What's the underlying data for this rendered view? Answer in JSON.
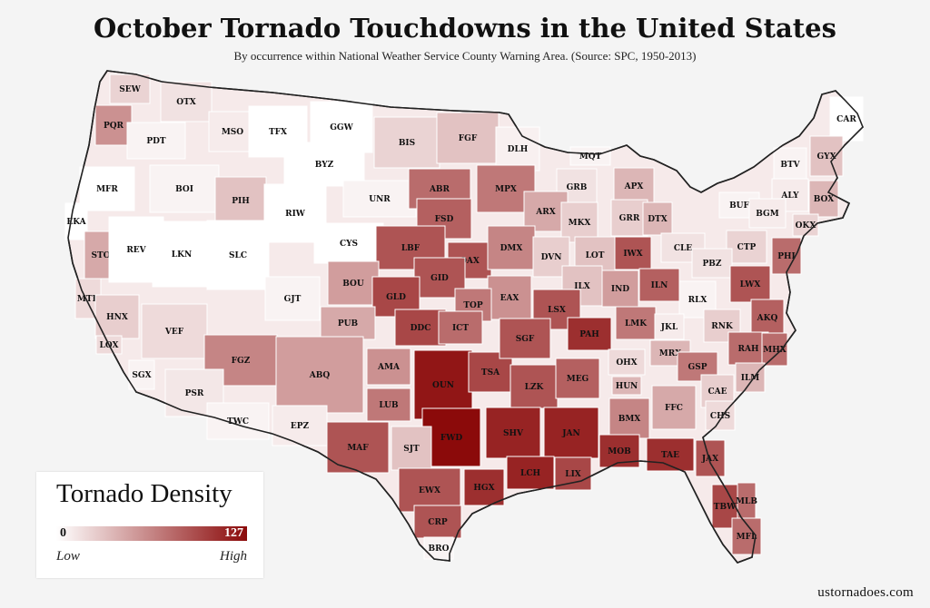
{
  "title": "October Tornado Touchdowns in the United States",
  "subtitle": "By occurrence within National Weather Service County Warning Area. (Source: SPC, 1950-2013)",
  "legend": {
    "title": "Tornado Density",
    "min": "0",
    "max": "127",
    "low": "Low",
    "high": "High",
    "color_low": "#ffffff",
    "color_high": "#8b0a0a"
  },
  "credit": "ustornadoes.com",
  "regions": [
    {
      "id": "SEW",
      "density": 0.18
    },
    {
      "id": "OTX",
      "density": 0.12
    },
    {
      "id": "PQR",
      "density": 0.45
    },
    {
      "id": "PDT",
      "density": 0.05
    },
    {
      "id": "MSO",
      "density": 0.08
    },
    {
      "id": "TFX",
      "density": 0.0
    },
    {
      "id": "GGW",
      "density": 0.0
    },
    {
      "id": "BIS",
      "density": 0.18
    },
    {
      "id": "FGF",
      "density": 0.25
    },
    {
      "id": "DLH",
      "density": 0.06
    },
    {
      "id": "MQT",
      "density": 0.05
    },
    {
      "id": "CAR",
      "density": 0.0
    },
    {
      "id": "MFR",
      "density": 0.0
    },
    {
      "id": "BOI",
      "density": 0.05
    },
    {
      "id": "BYZ",
      "density": 0.0
    },
    {
      "id": "UNR",
      "density": 0.05
    },
    {
      "id": "ABR",
      "density": 0.6
    },
    {
      "id": "MPX",
      "density": 0.55
    },
    {
      "id": "GRB",
      "density": 0.12
    },
    {
      "id": "APX",
      "density": 0.3
    },
    {
      "id": "BTV",
      "density": 0.05
    },
    {
      "id": "GYX",
      "density": 0.25
    },
    {
      "id": "EKA",
      "density": 0.0
    },
    {
      "id": "PIH",
      "density": 0.25
    },
    {
      "id": "RIW",
      "density": 0.0
    },
    {
      "id": "CYS",
      "density": 0.0
    },
    {
      "id": "FSD",
      "density": 0.65
    },
    {
      "id": "ARX",
      "density": 0.35
    },
    {
      "id": "MKX",
      "density": 0.2
    },
    {
      "id": "GRR",
      "density": 0.2
    },
    {
      "id": "DTX",
      "density": 0.3
    },
    {
      "id": "ALY",
      "density": 0.08
    },
    {
      "id": "BOX",
      "density": 0.3
    },
    {
      "id": "BUF",
      "density": 0.05
    },
    {
      "id": "BGM",
      "density": 0.08
    },
    {
      "id": "OKX",
      "density": 0.18
    },
    {
      "id": "STO",
      "density": 0.35
    },
    {
      "id": "REV",
      "density": 0.0
    },
    {
      "id": "LKN",
      "density": 0.0
    },
    {
      "id": "SLC",
      "density": 0.0
    },
    {
      "id": "LBF",
      "density": 0.7
    },
    {
      "id": "OAX",
      "density": 0.7
    },
    {
      "id": "DMX",
      "density": 0.5
    },
    {
      "id": "DVN",
      "density": 0.2
    },
    {
      "id": "LOT",
      "density": 0.25
    },
    {
      "id": "IWX",
      "density": 0.7
    },
    {
      "id": "CLE",
      "density": 0.12
    },
    {
      "id": "CTP",
      "density": 0.18
    },
    {
      "id": "PHI",
      "density": 0.6
    },
    {
      "id": "MTR",
      "density": 0.15
    },
    {
      "id": "GJT",
      "density": 0.05
    },
    {
      "id": "BOU",
      "density": 0.4
    },
    {
      "id": "GID",
      "density": 0.7
    },
    {
      "id": "GLD",
      "density": 0.75
    },
    {
      "id": "EAX",
      "density": 0.45
    },
    {
      "id": "ILX",
      "density": 0.25
    },
    {
      "id": "IND",
      "density": 0.4
    },
    {
      "id": "ILN",
      "density": 0.65
    },
    {
      "id": "PBZ",
      "density": 0.12
    },
    {
      "id": "LWX",
      "density": 0.7
    },
    {
      "id": "HNX",
      "density": 0.2
    },
    {
      "id": "VEF",
      "density": 0.15
    },
    {
      "id": "PUB",
      "density": 0.35
    },
    {
      "id": "DDC",
      "density": 0.75
    },
    {
      "id": "TOP",
      "density": 0.55
    },
    {
      "id": "ICT",
      "density": 0.6
    },
    {
      "id": "LSX",
      "density": 0.7
    },
    {
      "id": "PAH",
      "density": 0.85
    },
    {
      "id": "LMK",
      "density": 0.55
    },
    {
      "id": "RLX",
      "density": 0.05
    },
    {
      "id": "JKL",
      "density": 0.08
    },
    {
      "id": "RNK",
      "density": 0.2
    },
    {
      "id": "AKQ",
      "density": 0.65
    },
    {
      "id": "LOX",
      "density": 0.15
    },
    {
      "id": "FGZ",
      "density": 0.5
    },
    {
      "id": "ABQ",
      "density": 0.4
    },
    {
      "id": "AMA",
      "density": 0.45
    },
    {
      "id": "OUN",
      "density": 0.95
    },
    {
      "id": "TSA",
      "density": 0.75
    },
    {
      "id": "SGF",
      "density": 0.7
    },
    {
      "id": "MRX",
      "density": 0.3
    },
    {
      "id": "OHX",
      "density": 0.15
    },
    {
      "id": "GSP",
      "density": 0.55
    },
    {
      "id": "RAH",
      "density": 0.6
    },
    {
      "id": "MHX",
      "density": 0.6
    },
    {
      "id": "SGX",
      "density": 0.05
    },
    {
      "id": "PSR",
      "density": 0.1
    },
    {
      "id": "LUB",
      "density": 0.55
    },
    {
      "id": "LZK",
      "density": 0.7
    },
    {
      "id": "MEG",
      "density": 0.65
    },
    {
      "id": "HUN",
      "density": 0.3
    },
    {
      "id": "ILM",
      "density": 0.3
    },
    {
      "id": "CAE",
      "density": 0.2
    },
    {
      "id": "TWC",
      "density": 0.05
    },
    {
      "id": "EPZ",
      "density": 0.08
    },
    {
      "id": "MAF",
      "density": 0.7
    },
    {
      "id": "FWD",
      "density": 1.0
    },
    {
      "id": "SHV",
      "density": 0.9
    },
    {
      "id": "JAN",
      "density": 0.9
    },
    {
      "id": "BMX",
      "density": 0.5
    },
    {
      "id": "FFC",
      "density": 0.35
    },
    {
      "id": "CHS",
      "density": 0.15
    },
    {
      "id": "SJT",
      "density": 0.25
    },
    {
      "id": "EWX",
      "density": 0.7
    },
    {
      "id": "HGX",
      "density": 0.85
    },
    {
      "id": "LCH",
      "density": 0.9
    },
    {
      "id": "LIX",
      "density": 0.75
    },
    {
      "id": "MOB",
      "density": 0.85
    },
    {
      "id": "TAE",
      "density": 0.85
    },
    {
      "id": "JAX",
      "density": 0.7
    },
    {
      "id": "CRP",
      "density": 0.7
    },
    {
      "id": "BRO",
      "density": 0.05
    },
    {
      "id": "TBW",
      "density": 0.75
    },
    {
      "id": "MLB",
      "density": 0.6
    },
    {
      "id": "MFL",
      "density": 0.6
    }
  ]
}
